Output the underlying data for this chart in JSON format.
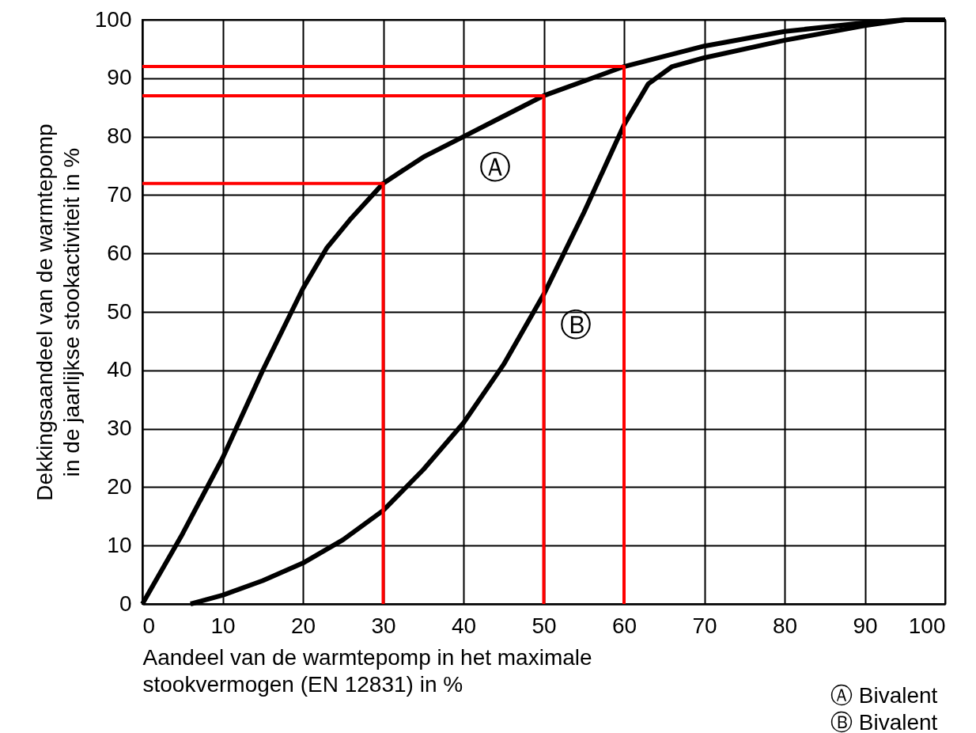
{
  "chart_data": {
    "type": "line",
    "xlabel": "Aandeel van de warmtepomp in het maximale\nstookvermogen (EN 12831) in %",
    "ylabel": "Dekkingsaandeel van de warmtepomp\nin de jaarlijkse stookactiviteit in %",
    "xlim": [
      0,
      100
    ],
    "ylim": [
      0,
      100
    ],
    "xticks": [
      0,
      10,
      20,
      30,
      40,
      50,
      60,
      70,
      80,
      90,
      100
    ],
    "yticks": [
      0,
      10,
      20,
      30,
      40,
      50,
      60,
      70,
      80,
      90,
      100
    ],
    "grid": true,
    "series": [
      {
        "name": "Ⓐ",
        "color": "#000000",
        "x": [
          0,
          5,
          10,
          15,
          20,
          23,
          26,
          30,
          35,
          40,
          45,
          50,
          55,
          60,
          70,
          80,
          90,
          95,
          100
        ],
        "values": [
          0,
          12,
          25,
          40,
          54,
          61,
          66,
          72,
          76.5,
          80,
          83.5,
          87,
          89.5,
          92,
          95.5,
          98,
          99.5,
          100,
          100
        ]
      },
      {
        "name": "Ⓑ",
        "color": "#000000",
        "x": [
          6,
          10,
          15,
          20,
          25,
          30,
          35,
          40,
          45,
          50,
          55,
          60,
          63,
          66,
          70,
          80,
          90,
          95,
          100
        ],
        "values": [
          0,
          1.5,
          4,
          7,
          11,
          16,
          23,
          31,
          41,
          53,
          67,
          82,
          89,
          92,
          93.5,
          96.5,
          99,
          100,
          100
        ]
      },
      {
        "color": "#ff0000",
        "x": [
          30,
          30,
          0
        ],
        "values": [
          0,
          72,
          72
        ]
      },
      {
        "color": "#ff0000",
        "x": [
          50,
          50,
          0
        ],
        "values": [
          0,
          87,
          87
        ]
      },
      {
        "color": "#ff0000",
        "x": [
          60,
          60,
          0
        ],
        "values": [
          0,
          92,
          92
        ]
      }
    ],
    "annotations": [
      "Ⓐ  Bivalent",
      "Ⓑ  Bivalent"
    ]
  }
}
